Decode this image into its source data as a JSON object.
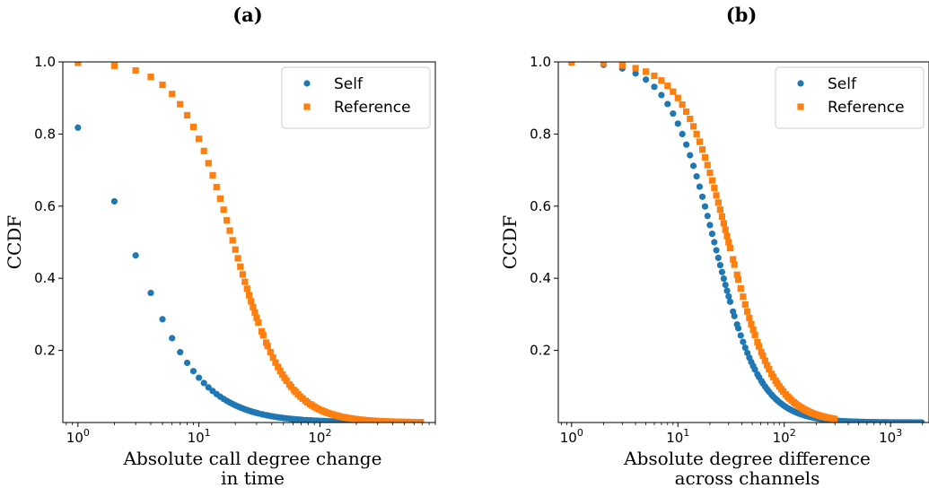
{
  "chart_data": [
    {
      "type": "scatter",
      "title": "(a)",
      "xlabel": [
        "Absolute call degree change",
        "in time"
      ],
      "ylabel": "CCDF",
      "xscale": "log",
      "xlim": [
        0.75,
        900
      ],
      "ylim": [
        0.0,
        1.0
      ],
      "xticks": [
        1,
        10,
        100
      ],
      "xtick_labels": [
        {
          "base": "10",
          "exp": "0"
        },
        {
          "base": "10",
          "exp": "1"
        },
        {
          "base": "10",
          "exp": "2"
        }
      ],
      "yticks": [
        0.2,
        0.4,
        0.6,
        0.8,
        1.0
      ],
      "ytick_labels": [
        "0.2",
        "0.4",
        "0.6",
        "0.8",
        "1.0"
      ],
      "legend": "top-right",
      "series": [
        {
          "name": "Self",
          "marker": "circle",
          "color": "#1f77b4",
          "decay": {
            "type": "power",
            "scale": 2.72,
            "exponent": 1.5
          },
          "x_min": 1,
          "x_max": 700
        },
        {
          "name": "Reference",
          "marker": "square",
          "color": "#ff7f0e",
          "decay": {
            "type": "power",
            "scale": 19.2,
            "exponent": 2.0
          },
          "x_min": 1,
          "x_max": 700
        }
      ]
    },
    {
      "type": "scatter",
      "title": "(b)",
      "xlabel": [
        "Absolute degree difference",
        "across channels"
      ],
      "ylabel": "CCDF",
      "xscale": "log",
      "xlim": [
        0.75,
        2300
      ],
      "ylim": [
        0.0,
        1.0
      ],
      "xticks": [
        1,
        10,
        100,
        1000
      ],
      "xtick_labels": [
        {
          "base": "10",
          "exp": "0"
        },
        {
          "base": "10",
          "exp": "1"
        },
        {
          "base": "10",
          "exp": "2"
        },
        {
          "base": "10",
          "exp": "3"
        }
      ],
      "yticks": [
        0.2,
        0.4,
        0.6,
        0.8,
        1.0
      ],
      "ytick_labels": [
        "0.2",
        "0.4",
        "0.6",
        "0.8",
        "1.0"
      ],
      "legend": "top-right",
      "series": [
        {
          "name": "Self",
          "marker": "circle",
          "color": "#1f77b4",
          "decay": {
            "type": "power",
            "scale": 22.0,
            "exponent": 2.0
          },
          "x_min": 1,
          "x_max": 2000
        },
        {
          "name": "Reference",
          "marker": "square",
          "color": "#ff7f0e",
          "decay": {
            "type": "power",
            "scale": 30.0,
            "exponent": 2.0
          },
          "x_min": 1,
          "x_max": 300
        }
      ]
    }
  ]
}
